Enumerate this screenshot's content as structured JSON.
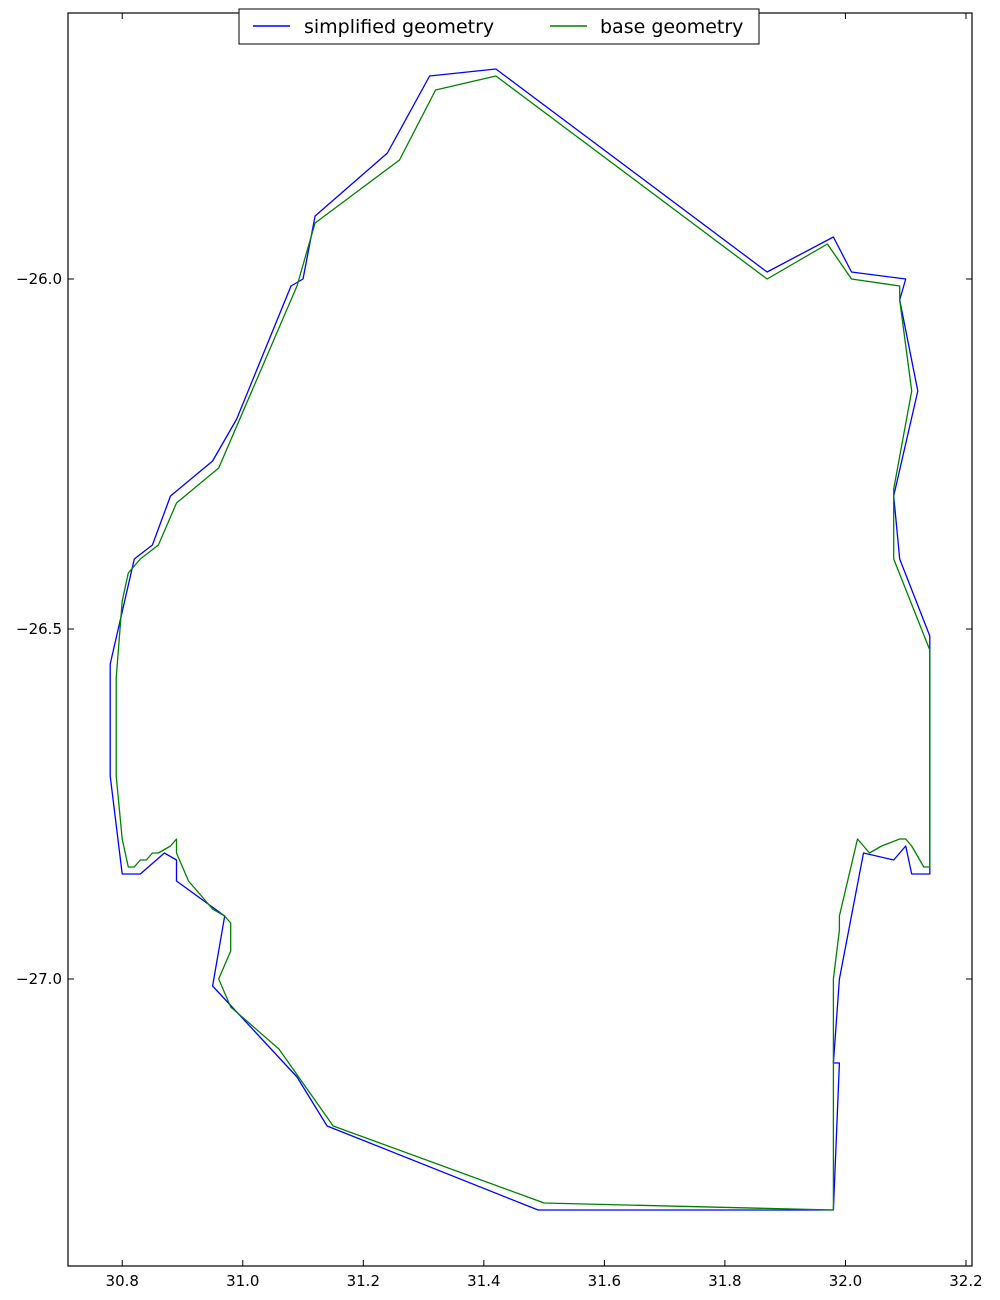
{
  "chart_data": {
    "type": "line",
    "title": "",
    "xlabel": "",
    "ylabel": "",
    "xlim": [
      30.71,
      32.21
    ],
    "ylim": [
      -27.41,
      -25.62
    ],
    "grid": false,
    "legend": {
      "placement": "top-center",
      "columns": 2
    },
    "x_ticks": [
      {
        "value": 30.8,
        "label": "30.8"
      },
      {
        "value": 31.0,
        "label": "31.0"
      },
      {
        "value": 31.2,
        "label": "31.2"
      },
      {
        "value": 31.4,
        "label": "31.4"
      },
      {
        "value": 31.6,
        "label": "31.6"
      },
      {
        "value": 31.8,
        "label": "31.8"
      },
      {
        "value": 32.0,
        "label": "32.0"
      },
      {
        "value": 32.2,
        "label": "32.2"
      }
    ],
    "y_ticks": [
      {
        "value": -26.0,
        "label": "−26.0"
      },
      {
        "value": -26.5,
        "label": "−26.5"
      },
      {
        "value": -27.0,
        "label": "−27.0"
      }
    ],
    "series": [
      {
        "name": "simplified geometry",
        "color": "#0000ff",
        "x": [
          30.78,
          30.78,
          30.82,
          30.85,
          30.88,
          30.95,
          30.99,
          31.08,
          31.1,
          31.12,
          31.24,
          31.31,
          31.42,
          31.87,
          31.98,
          32.01,
          32.1,
          32.09,
          32.12,
          32.08,
          32.09,
          32.14,
          32.14,
          32.11,
          32.1,
          32.08,
          32.03,
          31.99,
          31.98,
          31.99,
          31.98,
          31.49,
          31.14,
          31.09,
          30.95,
          30.97,
          30.89,
          30.89,
          30.87,
          30.83,
          30.8,
          30.78
        ],
        "y": [
          -26.71,
          -26.55,
          -26.4,
          -26.38,
          -26.31,
          -26.26,
          -26.2,
          -26.01,
          -26.0,
          -25.91,
          -25.82,
          -25.71,
          -25.7,
          -25.99,
          -25.94,
          -25.99,
          -26.0,
          -26.03,
          -26.16,
          -26.31,
          -26.4,
          -26.51,
          -26.85,
          -26.85,
          -26.81,
          -26.83,
          -26.82,
          -27.0,
          -27.12,
          -27.12,
          -27.33,
          -27.33,
          -27.21,
          -27.14,
          -27.01,
          -26.91,
          -26.86,
          -26.83,
          -26.82,
          -26.85,
          -26.85,
          -26.71
        ]
      },
      {
        "name": "base geometry",
        "color": "#008000",
        "x": [
          30.79,
          30.79,
          30.8,
          30.81,
          30.83,
          30.86,
          30.89,
          30.96,
          31.03,
          31.06,
          31.09,
          31.1,
          31.12,
          31.26,
          31.32,
          31.42,
          31.87,
          31.97,
          32.01,
          32.09,
          32.09,
          32.11,
          32.08,
          32.08,
          32.14,
          32.14,
          32.13,
          32.11,
          32.1,
          32.09,
          32.06,
          32.04,
          32.02,
          32.02,
          31.99,
          31.99,
          31.98,
          31.98,
          31.98,
          31.5,
          31.15,
          31.06,
          30.98,
          30.96,
          30.98,
          30.98,
          30.97,
          30.95,
          30.93,
          30.91,
          30.9,
          30.89,
          30.89,
          30.88,
          30.86,
          30.85,
          30.84,
          30.83,
          30.82,
          30.81,
          30.8,
          30.79
        ],
        "y": [
          -26.71,
          -26.57,
          -26.46,
          -26.42,
          -26.4,
          -26.38,
          -26.32,
          -26.27,
          -26.13,
          -26.07,
          -26.01,
          -25.98,
          -25.92,
          -25.83,
          -25.73,
          -25.71,
          -26.0,
          -25.95,
          -26.0,
          -26.01,
          -26.03,
          -26.16,
          -26.3,
          -26.4,
          -26.53,
          -26.84,
          -26.84,
          -26.81,
          -26.8,
          -26.8,
          -26.81,
          -26.82,
          -26.8,
          -26.8,
          -26.91,
          -26.93,
          -27.0,
          -27.15,
          -27.33,
          -27.32,
          -27.21,
          -27.1,
          -27.04,
          -27.0,
          -26.96,
          -26.92,
          -26.91,
          -26.9,
          -26.88,
          -26.86,
          -26.84,
          -26.82,
          -26.8,
          -26.81,
          -26.82,
          -26.82,
          -26.83,
          -26.83,
          -26.84,
          -26.84,
          -26.8,
          -26.71
        ]
      }
    ]
  }
}
